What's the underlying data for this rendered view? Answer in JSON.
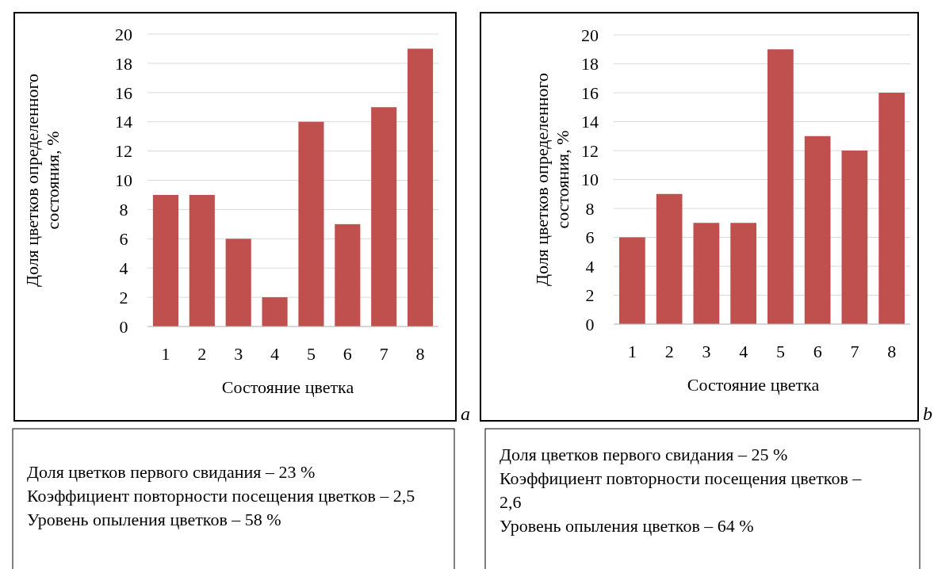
{
  "chart_data": [
    {
      "type": "bar",
      "categories": [
        "1",
        "2",
        "3",
        "4",
        "5",
        "6",
        "7",
        "8"
      ],
      "values": [
        9,
        9,
        6,
        2,
        14,
        7,
        15,
        19
      ],
      "color": "#c0504d",
      "ylim": [
        0,
        20
      ],
      "yticks": [
        0,
        2,
        4,
        6,
        8,
        10,
        12,
        14,
        16,
        18,
        20
      ],
      "grid": "y",
      "xlabel": "Состояние цветка",
      "ylabel": "Доля цветков определенного состояния, %",
      "annotations": [
        "a",
        "Доля цветков первого свидания – 23 %",
        "Коэффициент повторности посещения цветков – 2,5",
        "Уровень опыления цветков – 58 %"
      ]
    },
    {
      "type": "bar",
      "categories": [
        "1",
        "2",
        "3",
        "4",
        "5",
        "6",
        "7",
        "8"
      ],
      "values": [
        6,
        9,
        7,
        7,
        19,
        13,
        12,
        16
      ],
      "color": "#c0504d",
      "ylim": [
        0,
        20
      ],
      "yticks": [
        0,
        2,
        4,
        6,
        8,
        10,
        12,
        14,
        16,
        18,
        20
      ],
      "grid": "y",
      "xlabel": "Состояние цветка",
      "ylabel": "Доля цветков определенного состояния, %",
      "annotations": [
        "b",
        "Доля цветков первого свидания – 25 %",
        "Коэффициент повторности посещения цветков – 2,6",
        "Уровень опыления цветков – 64 %"
      ]
    }
  ]
}
